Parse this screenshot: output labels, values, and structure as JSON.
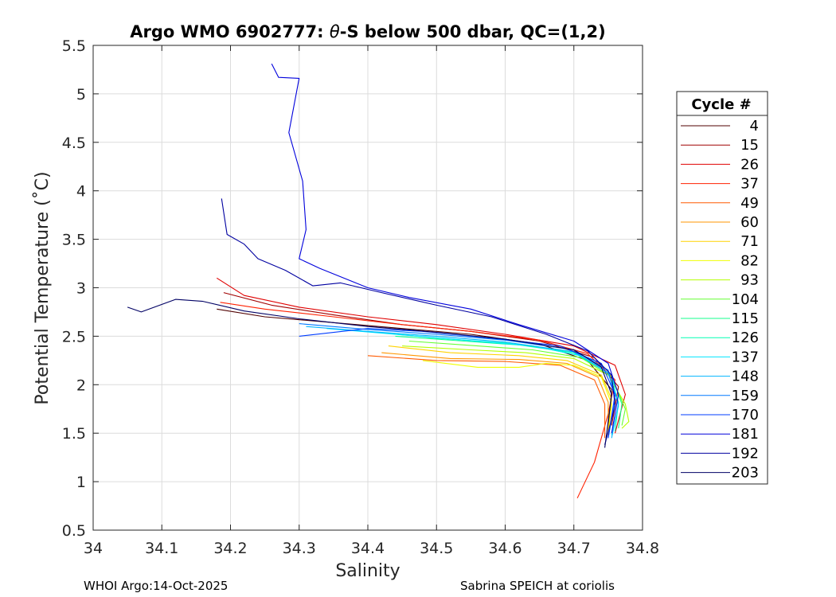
{
  "chart_data": {
    "type": "line",
    "title": "Argo WMO 6902777: θ-S below 500 dbar,  QC=(1,2)",
    "title_prefix": "Argo WMO 6902777: ",
    "title_theta": "θ",
    "title_suffix": "-S below 500 dbar,  QC=(1,2)",
    "xlabel": "Salinity",
    "ylabel": "Potential Temperature (˚C)",
    "xlim": [
      34.0,
      34.8
    ],
    "ylim": [
      0.5,
      5.5
    ],
    "xticks": [
      34,
      34.1,
      34.2,
      34.3,
      34.4,
      34.5,
      34.6,
      34.7,
      34.8
    ],
    "xtick_labels": [
      "34",
      "34.1",
      "34.2",
      "34.3",
      "34.4",
      "34.5",
      "34.6",
      "34.7",
      "34.8"
    ],
    "yticks": [
      0.5,
      1,
      1.5,
      2,
      2.5,
      3,
      3.5,
      4,
      4.5,
      5,
      5.5
    ],
    "ytick_labels": [
      "0.5",
      "1",
      "1.5",
      "2",
      "2.5",
      "3",
      "3.5",
      "4",
      "4.5",
      "5",
      "5.5"
    ],
    "grid": true,
    "legend_title": "Cycle #",
    "legend_position": "outside-right",
    "series": [
      {
        "name": "4",
        "color": "#500000",
        "points": [
          [
            34.18,
            2.78
          ],
          [
            34.25,
            2.7
          ],
          [
            34.35,
            2.64
          ],
          [
            34.45,
            2.58
          ],
          [
            34.55,
            2.52
          ],
          [
            34.65,
            2.42
          ],
          [
            34.72,
            2.25
          ],
          [
            34.755,
            1.95
          ],
          [
            34.75,
            1.55
          ]
        ]
      },
      {
        "name": "15",
        "color": "#a00000",
        "points": [
          [
            34.19,
            2.95
          ],
          [
            34.26,
            2.82
          ],
          [
            34.35,
            2.72
          ],
          [
            34.45,
            2.62
          ],
          [
            34.55,
            2.55
          ],
          [
            34.65,
            2.45
          ],
          [
            34.73,
            2.28
          ],
          [
            34.765,
            1.98
          ],
          [
            34.755,
            1.58
          ]
        ]
      },
      {
        "name": "26",
        "color": "#e00000",
        "points": [
          [
            34.18,
            3.1
          ],
          [
            34.22,
            2.92
          ],
          [
            34.3,
            2.8
          ],
          [
            34.4,
            2.7
          ],
          [
            34.5,
            2.62
          ],
          [
            34.6,
            2.52
          ],
          [
            34.7,
            2.4
          ],
          [
            34.76,
            2.2
          ],
          [
            34.775,
            1.9
          ],
          [
            34.76,
            1.5
          ]
        ]
      },
      {
        "name": "37",
        "color": "#ff2000",
        "points": [
          [
            34.185,
            2.85
          ],
          [
            34.25,
            2.78
          ],
          [
            34.35,
            2.7
          ],
          [
            34.45,
            2.62
          ],
          [
            34.55,
            2.55
          ],
          [
            34.65,
            2.46
          ],
          [
            34.72,
            2.32
          ],
          [
            34.76,
            2.05
          ],
          [
            34.75,
            1.7
          ],
          [
            34.73,
            1.2
          ],
          [
            34.705,
            0.83
          ]
        ]
      },
      {
        "name": "49",
        "color": "#ff5a00",
        "points": [
          [
            34.4,
            2.3
          ],
          [
            34.5,
            2.25
          ],
          [
            34.6,
            2.24
          ],
          [
            34.68,
            2.2
          ],
          [
            34.73,
            2.05
          ],
          [
            34.745,
            1.8
          ],
          [
            34.745,
            1.45
          ]
        ]
      },
      {
        "name": "60",
        "color": "#ff9600",
        "points": [
          [
            34.42,
            2.33
          ],
          [
            34.52,
            2.27
          ],
          [
            34.62,
            2.26
          ],
          [
            34.69,
            2.22
          ],
          [
            34.735,
            2.08
          ],
          [
            34.75,
            1.82
          ],
          [
            34.75,
            1.48
          ]
        ]
      },
      {
        "name": "71",
        "color": "#ffd200",
        "points": [
          [
            34.43,
            2.4
          ],
          [
            34.52,
            2.33
          ],
          [
            34.62,
            2.3
          ],
          [
            34.69,
            2.25
          ],
          [
            34.74,
            2.1
          ],
          [
            34.755,
            1.85
          ],
          [
            34.75,
            1.5
          ]
        ]
      },
      {
        "name": "82",
        "color": "#f0ff00",
        "points": [
          [
            34.48,
            2.25
          ],
          [
            34.56,
            2.18
          ],
          [
            34.62,
            2.18
          ],
          [
            34.66,
            2.22
          ],
          [
            34.7,
            2.2
          ],
          [
            34.74,
            2.08
          ],
          [
            34.755,
            1.8
          ],
          [
            34.75,
            1.5
          ]
        ]
      },
      {
        "name": "93",
        "color": "#b4ff00",
        "points": [
          [
            34.45,
            2.4
          ],
          [
            34.55,
            2.36
          ],
          [
            34.63,
            2.33
          ],
          [
            34.7,
            2.27
          ],
          [
            34.75,
            2.1
          ],
          [
            34.775,
            1.8
          ],
          [
            34.78,
            1.62
          ],
          [
            34.77,
            1.55
          ]
        ]
      },
      {
        "name": "104",
        "color": "#64ff32",
        "points": [
          [
            34.46,
            2.45
          ],
          [
            34.56,
            2.4
          ],
          [
            34.64,
            2.36
          ],
          [
            34.71,
            2.28
          ],
          [
            34.755,
            2.08
          ],
          [
            34.775,
            1.75
          ],
          [
            34.77,
            1.58
          ]
        ]
      },
      {
        "name": "115",
        "color": "#14ff8c",
        "points": [
          [
            34.44,
            2.5
          ],
          [
            34.54,
            2.45
          ],
          [
            34.64,
            2.4
          ],
          [
            34.71,
            2.3
          ],
          [
            34.755,
            2.1
          ],
          [
            34.77,
            1.8
          ],
          [
            34.765,
            1.55
          ]
        ]
      },
      {
        "name": "126",
        "color": "#00ffb4",
        "points": [
          [
            34.4,
            2.55
          ],
          [
            34.5,
            2.48
          ],
          [
            34.6,
            2.43
          ],
          [
            34.7,
            2.33
          ],
          [
            34.75,
            2.12
          ],
          [
            34.765,
            1.82
          ],
          [
            34.76,
            1.52
          ]
        ]
      },
      {
        "name": "137",
        "color": "#00e6ff",
        "points": [
          [
            34.34,
            2.58
          ],
          [
            34.44,
            2.52
          ],
          [
            34.54,
            2.46
          ],
          [
            34.64,
            2.4
          ],
          [
            34.71,
            2.3
          ],
          [
            34.755,
            2.1
          ],
          [
            34.765,
            1.78
          ],
          [
            34.755,
            1.48
          ]
        ]
      },
      {
        "name": "148",
        "color": "#00b4ff",
        "points": [
          [
            34.31,
            2.6
          ],
          [
            34.4,
            2.55
          ],
          [
            34.5,
            2.5
          ],
          [
            34.6,
            2.44
          ],
          [
            34.7,
            2.34
          ],
          [
            34.75,
            2.12
          ],
          [
            34.765,
            1.8
          ],
          [
            34.755,
            1.45
          ]
        ]
      },
      {
        "name": "159",
        "color": "#0078ff",
        "points": [
          [
            34.3,
            2.63
          ],
          [
            34.4,
            2.57
          ],
          [
            34.5,
            2.52
          ],
          [
            34.6,
            2.46
          ],
          [
            34.7,
            2.36
          ],
          [
            34.75,
            2.15
          ],
          [
            34.76,
            1.85
          ],
          [
            34.75,
            1.45
          ]
        ]
      },
      {
        "name": "170",
        "color": "#003cff",
        "points": [
          [
            34.3,
            2.5
          ],
          [
            34.4,
            2.58
          ],
          [
            34.48,
            2.55
          ],
          [
            34.58,
            2.48
          ],
          [
            34.68,
            2.4
          ],
          [
            34.74,
            2.22
          ],
          [
            34.76,
            1.9
          ],
          [
            34.75,
            1.45
          ]
        ]
      },
      {
        "name": "181",
        "color": "#0000dc",
        "points": [
          [
            34.26,
            5.31
          ],
          [
            34.27,
            5.17
          ],
          [
            34.3,
            5.16
          ],
          [
            34.285,
            4.6
          ],
          [
            34.305,
            4.1
          ],
          [
            34.31,
            3.6
          ],
          [
            34.3,
            3.3
          ],
          [
            34.33,
            3.2
          ],
          [
            34.4,
            3.0
          ],
          [
            34.46,
            2.9
          ],
          [
            34.55,
            2.78
          ],
          [
            34.62,
            2.62
          ],
          [
            34.7,
            2.45
          ],
          [
            34.75,
            2.22
          ],
          [
            34.765,
            1.9
          ],
          [
            34.755,
            1.5
          ]
        ]
      },
      {
        "name": "192",
        "color": "#0000a0",
        "points": [
          [
            34.187,
            3.92
          ],
          [
            34.195,
            3.55
          ],
          [
            34.22,
            3.45
          ],
          [
            34.24,
            3.3
          ],
          [
            34.28,
            3.18
          ],
          [
            34.32,
            3.02
          ],
          [
            34.36,
            3.05
          ],
          [
            34.42,
            2.95
          ],
          [
            34.5,
            2.82
          ],
          [
            34.58,
            2.7
          ],
          [
            34.66,
            2.52
          ],
          [
            34.72,
            2.35
          ],
          [
            34.755,
            2.1
          ],
          [
            34.76,
            1.78
          ],
          [
            34.745,
            1.38
          ]
        ]
      },
      {
        "name": "203",
        "color": "#000064",
        "points": [
          [
            34.05,
            2.8
          ],
          [
            34.07,
            2.75
          ],
          [
            34.12,
            2.88
          ],
          [
            34.16,
            2.86
          ],
          [
            34.22,
            2.76
          ],
          [
            34.3,
            2.68
          ],
          [
            34.4,
            2.6
          ],
          [
            34.5,
            2.54
          ],
          [
            34.6,
            2.47
          ],
          [
            34.7,
            2.36
          ],
          [
            34.74,
            2.18
          ],
          [
            34.755,
            1.9
          ],
          [
            34.745,
            1.35
          ]
        ]
      }
    ]
  },
  "footer": {
    "left": "WHOI Argo:14-Oct-2025",
    "right": "Sabrina SPEICH at coriolis"
  }
}
